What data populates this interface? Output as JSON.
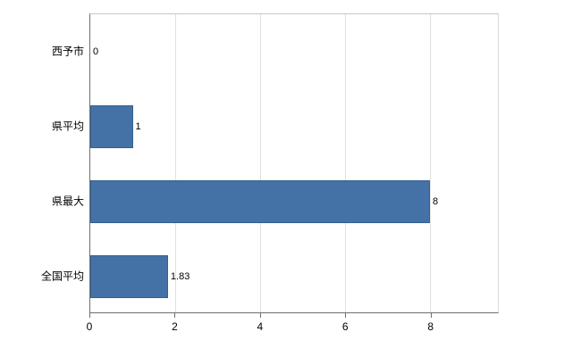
{
  "chart_data": {
    "type": "bar",
    "orientation": "horizontal",
    "title": "",
    "xlabel": "",
    "ylabel": "",
    "categories": [
      "西予市",
      "県平均",
      "県最大",
      "全国平均"
    ],
    "values": [
      0,
      1,
      8,
      1.83
    ],
    "value_labels": [
      "0",
      "1",
      "8",
      "1.83"
    ],
    "x_ticks": [
      0,
      2,
      4,
      6,
      8
    ],
    "x_tick_labels": [
      "0",
      "2",
      "4",
      "6",
      "8"
    ],
    "xlim": [
      0,
      9.6
    ],
    "grid": true,
    "legend": "none",
    "bar_color": "#4472a7",
    "bar_border_color": "#35608f",
    "gridline_color": "#e0e0e0",
    "axis_color": "#6e6e6e",
    "background_color": "#ffffff"
  }
}
